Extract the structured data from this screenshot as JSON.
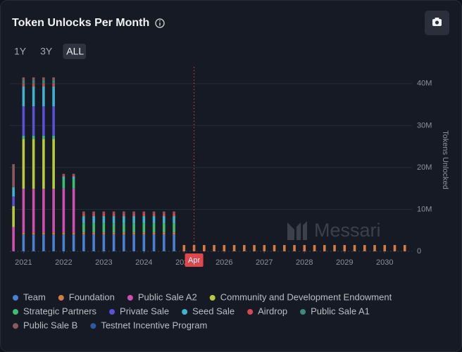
{
  "chart_data": {
    "type": "stacked_bar",
    "title": "Token Unlocks Per Month",
    "range_tabs": [
      "1Y",
      "3Y",
      "ALL"
    ],
    "selected_range": "ALL",
    "y_axis_label": "Tokens Unlocked",
    "watermark": "Messari",
    "marker": {
      "label": "Apr",
      "x": 2025.25
    },
    "x": [
      2020.75,
      2021,
      2021.25,
      2021.5,
      2021.75,
      2022,
      2022.25,
      2022.5,
      2022.75,
      2023,
      2023.25,
      2023.5,
      2023.75,
      2024,
      2024.25,
      2024.5,
      2024.75,
      2025,
      2025.25,
      2025.5,
      2025.75,
      2026,
      2026.25,
      2026.5,
      2026.75,
      2027,
      2027.25,
      2027.5,
      2027.75,
      2028,
      2028.25,
      2028.5,
      2028.75,
      2029,
      2029.25,
      2029.5,
      2029.75,
      2030,
      2030.25,
      2030.5
    ],
    "xlim": [
      2020.66,
      2030.68
    ],
    "xticks": [
      2021,
      2022,
      2023,
      2024,
      2025,
      2026,
      2027,
      2028,
      2029,
      2030
    ],
    "ylim": [
      0,
      44000000
    ],
    "yticks": [
      0,
      {
        "value": 10000000,
        "label": "10M"
      },
      {
        "value": 20000000,
        "label": "20M"
      },
      {
        "value": 30000000,
        "label": "30M"
      },
      {
        "value": 40000000,
        "label": "40M"
      }
    ],
    "grid": true,
    "legend_position": "bottom",
    "series": [
      {
        "name": "Team",
        "color": "#4a7fd4",
        "values": [
          0,
          4000000,
          4000000,
          4000000,
          4000000,
          4000000,
          4000000,
          4000000,
          4000000,
          4000000,
          4000000,
          4000000,
          4000000,
          4000000,
          4000000,
          4000000,
          4000000,
          0,
          0,
          0,
          0,
          0,
          0,
          0,
          0,
          0,
          0,
          0,
          0,
          0,
          0,
          0,
          0,
          0,
          0,
          0,
          0,
          0,
          0,
          0
        ]
      },
      {
        "name": "Foundation",
        "color": "#d47a45",
        "values": [
          0,
          500000,
          500000,
          500000,
          500000,
          500000,
          500000,
          500000,
          500000,
          500000,
          500000,
          500000,
          500000,
          500000,
          500000,
          500000,
          500000,
          1500000,
          1500000,
          1500000,
          1500000,
          1500000,
          1500000,
          1500000,
          1500000,
          1500000,
          1500000,
          1500000,
          1500000,
          1500000,
          1500000,
          1500000,
          1500000,
          1500000,
          1500000,
          1500000,
          1500000,
          1500000,
          1500000,
          1500000
        ]
      },
      {
        "name": "Public Sale A2",
        "color": "#d04fae",
        "values": [
          5800000,
          10400000,
          10400000,
          10400000,
          10400000,
          10500000,
          10500000,
          0,
          0,
          0,
          0,
          0,
          0,
          0,
          0,
          0,
          0,
          0,
          0,
          0,
          0,
          0,
          0,
          0,
          0,
          0,
          0,
          0,
          0,
          0,
          0,
          0,
          0,
          0,
          0,
          0,
          0,
          0,
          0,
          0
        ]
      },
      {
        "name": "Community and Development Endowment",
        "color": "#b8c93a",
        "values": [
          5000000,
          11900000,
          11900000,
          11900000,
          11900000,
          0,
          0,
          0,
          0,
          0,
          0,
          0,
          0,
          0,
          0,
          0,
          0,
          0,
          0,
          0,
          0,
          0,
          0,
          0,
          0,
          0,
          0,
          0,
          0,
          0,
          0,
          0,
          0,
          0,
          0,
          0,
          0,
          0,
          0,
          0
        ]
      },
      {
        "name": "Strategic Partners",
        "color": "#3dbd73",
        "values": [
          0,
          800000,
          800000,
          800000,
          800000,
          2300000,
          2300000,
          2200000,
          2200000,
          2200000,
          2200000,
          2200000,
          2200000,
          2200000,
          2200000,
          2200000,
          2200000,
          0,
          0,
          0,
          0,
          0,
          0,
          0,
          0,
          0,
          0,
          0,
          0,
          0,
          0,
          0,
          0,
          0,
          0,
          0,
          0,
          0,
          0,
          0
        ]
      },
      {
        "name": "Private Sale",
        "color": "#5a4fd6",
        "values": [
          2300000,
          7000000,
          7000000,
          7000000,
          7000000,
          0,
          0,
          0,
          0,
          0,
          0,
          0,
          0,
          0,
          0,
          0,
          0,
          0,
          0,
          0,
          0,
          0,
          0,
          0,
          0,
          0,
          0,
          0,
          0,
          0,
          0,
          0,
          0,
          0,
          0,
          0,
          0,
          0,
          0,
          0
        ]
      },
      {
        "name": "Seed Sale",
        "color": "#3eb4cc",
        "values": [
          2200000,
          4700000,
          4700000,
          4700000,
          4700000,
          500000,
          500000,
          1700000,
          1700000,
          1700000,
          1700000,
          1700000,
          1700000,
          1700000,
          1700000,
          1700000,
          1700000,
          0,
          0,
          0,
          0,
          0,
          0,
          0,
          0,
          0,
          0,
          0,
          0,
          0,
          0,
          0,
          0,
          0,
          0,
          0,
          0,
          0,
          0,
          0
        ]
      },
      {
        "name": "Airdrop",
        "color": "#d8484f",
        "values": [
          0,
          700000,
          700000,
          700000,
          700000,
          400000,
          400000,
          600000,
          600000,
          600000,
          600000,
          600000,
          600000,
          600000,
          600000,
          600000,
          600000,
          0,
          0,
          0,
          0,
          0,
          0,
          0,
          0,
          0,
          0,
          0,
          0,
          0,
          0,
          0,
          0,
          0,
          0,
          0,
          0,
          0,
          0,
          0
        ]
      },
      {
        "name": "Public Sale A1",
        "color": "#3f8a7a",
        "values": [
          0,
          800000,
          800000,
          800000,
          800000,
          0,
          0,
          0,
          0,
          0,
          0,
          0,
          0,
          0,
          0,
          0,
          0,
          0,
          0,
          0,
          0,
          0,
          0,
          0,
          0,
          0,
          0,
          0,
          0,
          0,
          0,
          0,
          0,
          0,
          0,
          0,
          0,
          0,
          0,
          0
        ]
      },
      {
        "name": "Public Sale B",
        "color": "#8a5a5a",
        "values": [
          5500000,
          700000,
          700000,
          700000,
          700000,
          300000,
          300000,
          500000,
          500000,
          500000,
          500000,
          500000,
          500000,
          500000,
          500000,
          500000,
          500000,
          0,
          0,
          0,
          0,
          0,
          0,
          0,
          0,
          0,
          0,
          0,
          0,
          0,
          0,
          0,
          0,
          0,
          0,
          0,
          0,
          0,
          0,
          0
        ]
      },
      {
        "name": "Testnet Incentive Program",
        "color": "#2d5aa0",
        "values": [
          0,
          0,
          0,
          0,
          0,
          0,
          0,
          0,
          0,
          0,
          0,
          0,
          0,
          0,
          0,
          0,
          0,
          0,
          0,
          0,
          0,
          0,
          0,
          0,
          0,
          0,
          0,
          0,
          0,
          0,
          0,
          0,
          0,
          0,
          0,
          0,
          0,
          0,
          0,
          0
        ]
      }
    ]
  }
}
